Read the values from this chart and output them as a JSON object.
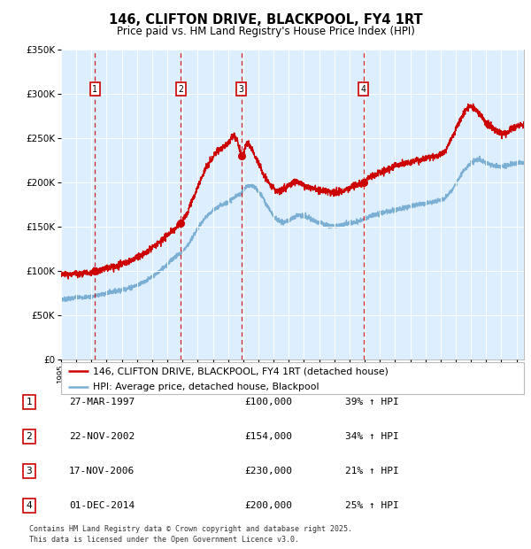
{
  "title": "146, CLIFTON DRIVE, BLACKPOOL, FY4 1RT",
  "subtitle": "Price paid vs. HM Land Registry's House Price Index (HPI)",
  "footer": "Contains HM Land Registry data © Crown copyright and database right 2025.\nThis data is licensed under the Open Government Licence v3.0.",
  "legend_line1": "146, CLIFTON DRIVE, BLACKPOOL, FY4 1RT (detached house)",
  "legend_line2": "HPI: Average price, detached house, Blackpool",
  "red_color": "#cc0000",
  "blue_color": "#7bafd4",
  "bg_color": "#ddeeff",
  "grid_color": "#ffffff",
  "purchases": [
    {
      "label": "1",
      "date": "27-MAR-1997",
      "price": 100000,
      "hpi_pct": "39%",
      "year": 1997.23
    },
    {
      "label": "2",
      "date": "22-NOV-2002",
      "price": 154000,
      "hpi_pct": "34%",
      "year": 2002.89
    },
    {
      "label": "3",
      "date": "17-NOV-2006",
      "price": 230000,
      "hpi_pct": "21%",
      "year": 2006.88
    },
    {
      "label": "4",
      "date": "01-DEC-2014",
      "price": 200000,
      "hpi_pct": "25%",
      "year": 2014.92
    }
  ],
  "ylim": [
    0,
    350000
  ],
  "yticks": [
    0,
    50000,
    100000,
    150000,
    200000,
    250000,
    300000,
    350000
  ],
  "xlim_start": 1995.0,
  "xlim_end": 2025.5,
  "fig_width": 6.0,
  "fig_height": 6.2,
  "dpi": 100
}
